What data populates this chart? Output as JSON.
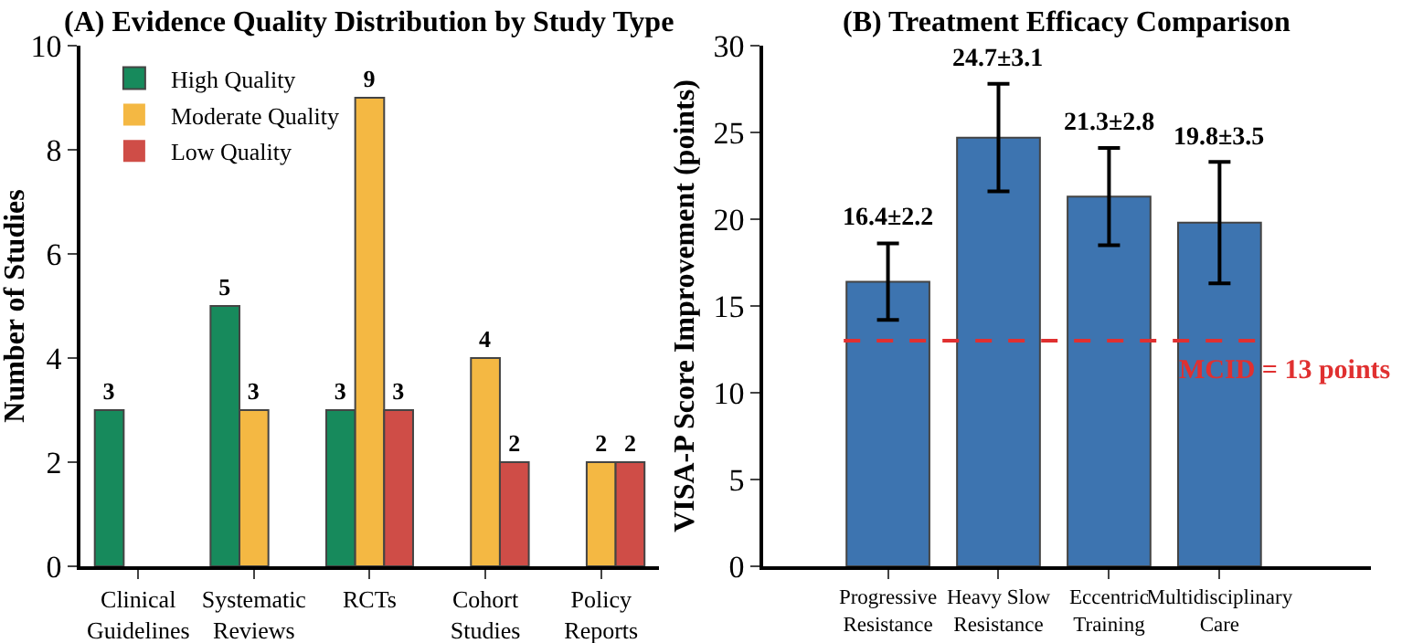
{
  "chart_data": [
    {
      "type": "bar",
      "title": "(A) Evidence Quality Distribution by Study Type",
      "ylabel": "Number of Studies",
      "categories": [
        "Clinical\nGuidelines",
        "Systematic\nReviews",
        "RCTs",
        "Cohort\nStudies",
        "Policy\nReports"
      ],
      "series": [
        {
          "name": "High Quality",
          "color": "#178a5c",
          "values": [
            3,
            5,
            3,
            0,
            0
          ],
          "value_labels": [
            "3",
            "5",
            "3",
            null,
            null
          ]
        },
        {
          "name": "Moderate Quality",
          "color": "#f4b843",
          "values": [
            0,
            3,
            9,
            4,
            2
          ],
          "value_labels": [
            null,
            "3",
            "9",
            "4",
            "2"
          ]
        },
        {
          "name": "Low Quality",
          "color": "#cf4d47",
          "values": [
            0,
            0,
            3,
            2,
            2
          ],
          "value_labels": [
            null,
            null,
            "3",
            "2",
            "2"
          ]
        }
      ],
      "ylim": [
        0,
        10
      ],
      "yticks": [
        0,
        2,
        4,
        6,
        8,
        10
      ],
      "grid": false,
      "legend": "top left"
    },
    {
      "type": "bar",
      "title": "(B) Treatment Efficacy Comparison",
      "ylabel": "VISA-P Score Improvement (points)",
      "categories": [
        "Progressive\nResistance",
        "Heavy Slow\nResistance",
        "Eccentric\nTraining",
        "Multidisciplinary\nCare"
      ],
      "series": [
        {
          "color": "#3d74b0",
          "values": [
            16.4,
            24.7,
            21.3,
            19.8
          ],
          "errors": [
            2.2,
            3.1,
            2.8,
            3.5
          ],
          "value_labels": [
            "16.4±2.2",
            "24.7±3.1",
            "21.3±2.8",
            "19.8±3.5"
          ]
        }
      ],
      "ref_lines": [
        {
          "axis": "y",
          "value": 13,
          "label": "MCID = 13 points",
          "color": "#e03030",
          "line_style": "dashed"
        }
      ],
      "ylim": [
        0,
        30
      ],
      "yticks": [
        0,
        5,
        10,
        15,
        20,
        25,
        30
      ],
      "grid": false,
      "legend": false
    }
  ]
}
